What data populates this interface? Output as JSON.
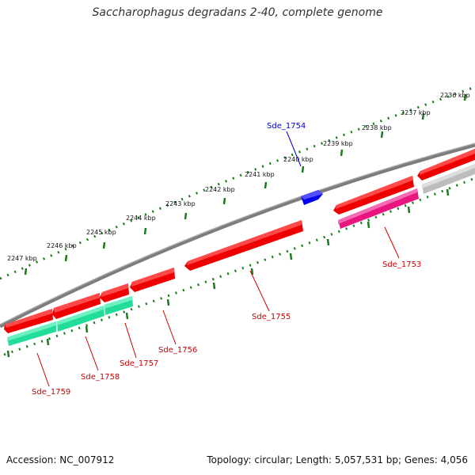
{
  "title": "Saccharophagus degradans 2-40, complete genome",
  "footer": {
    "accession": "Accession: NC_007912",
    "summary": "Topology: circular; Length: 5,057,531 bp; Genes: 4,056"
  },
  "ticks": [
    {
      "label": "2236 kbp"
    },
    {
      "label": "2237 kbp"
    },
    {
      "label": "2238 kbp"
    },
    {
      "label": "2239 kbp"
    },
    {
      "label": "2240 kbp"
    },
    {
      "label": "2241 kbp"
    },
    {
      "label": "2242 kbp"
    },
    {
      "label": "2243 kbp"
    },
    {
      "label": "2244 kbp"
    },
    {
      "label": "2245 kbp"
    },
    {
      "label": "2246 kbp"
    },
    {
      "label": "2247 kbp"
    }
  ],
  "genes": [
    {
      "name": "Sde_1753",
      "strand": "reverse",
      "track": "category",
      "color": "#e8157e"
    },
    {
      "name": "Sde_1754",
      "strand": "forward",
      "track": "forward",
      "color": "#0000ee"
    },
    {
      "name": "Sde_1755",
      "strand": "reverse",
      "track": "reverse",
      "color": "#ee0000"
    },
    {
      "name": "Sde_1756",
      "strand": "reverse",
      "track": "reverse",
      "color": "#ee0000"
    },
    {
      "name": "Sde_1757",
      "strand": "reverse",
      "track": "category",
      "color": "#22dd9a"
    },
    {
      "name": "Sde_1758",
      "strand": "reverse",
      "track": "category",
      "color": "#22dd9a"
    },
    {
      "name": "Sde_1759",
      "strand": "reverse",
      "track": "category",
      "color": "#22dd9a"
    }
  ],
  "colors": {
    "backbone": "#7d7d7d",
    "tick": "#1c7a1c",
    "reverse_label": "#cc0000",
    "forward_label": "#0000cc",
    "unknown": "#bdbdbd"
  }
}
